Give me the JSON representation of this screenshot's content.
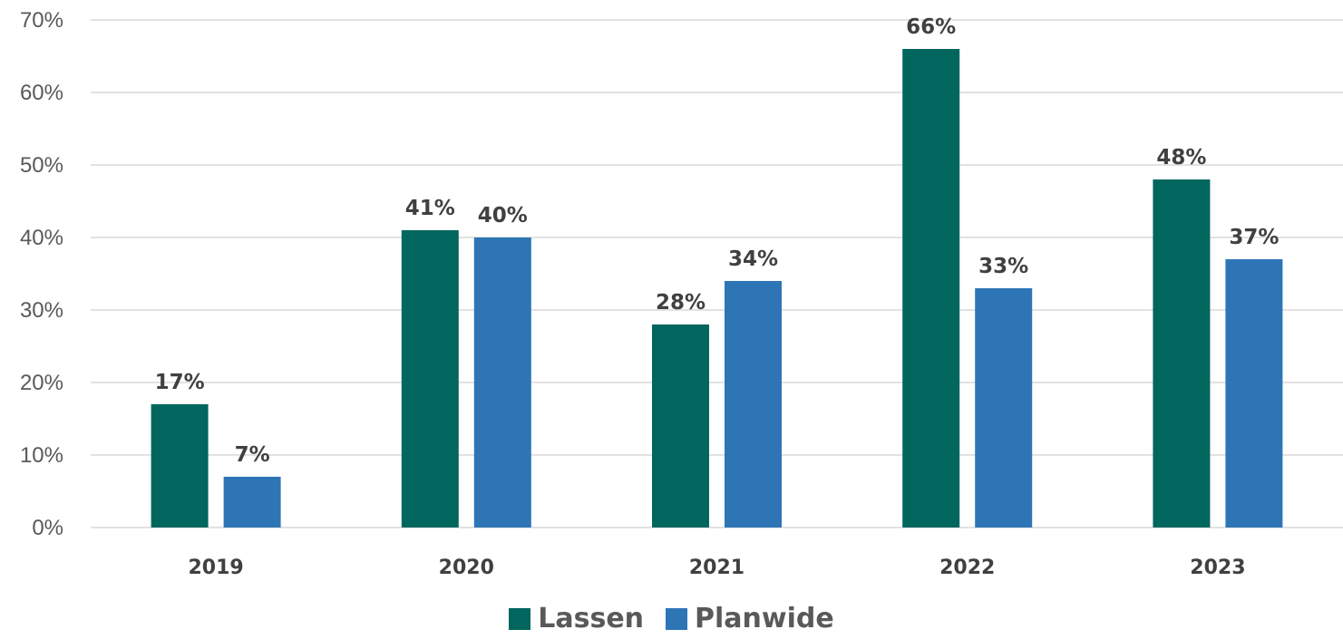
{
  "chart_data": {
    "type": "bar",
    "title": "",
    "xlabel": "",
    "ylabel": "",
    "categories": [
      "2019",
      "2020",
      "2021",
      "2022",
      "2023"
    ],
    "series": [
      {
        "name": "Lassen",
        "values": [
          17,
          41,
          28,
          66,
          48
        ],
        "color": "#00665E"
      },
      {
        "name": "Planwide",
        "values": [
          7,
          40,
          34,
          33,
          37
        ],
        "color": "#2E75B6"
      }
    ],
    "value_suffix": "%",
    "ylim": [
      0,
      70
    ],
    "yticks": [
      0,
      10,
      20,
      30,
      40,
      50,
      60,
      70
    ],
    "ytick_labels": [
      "0%",
      "10%",
      "20%",
      "30%",
      "40%",
      "50%",
      "60%",
      "70%"
    ],
    "grid": true,
    "legend_position": "bottom"
  },
  "legend": {
    "items": [
      {
        "label": "Lassen",
        "color": "#00665E"
      },
      {
        "label": "Planwide",
        "color": "#2E75B6"
      }
    ]
  }
}
